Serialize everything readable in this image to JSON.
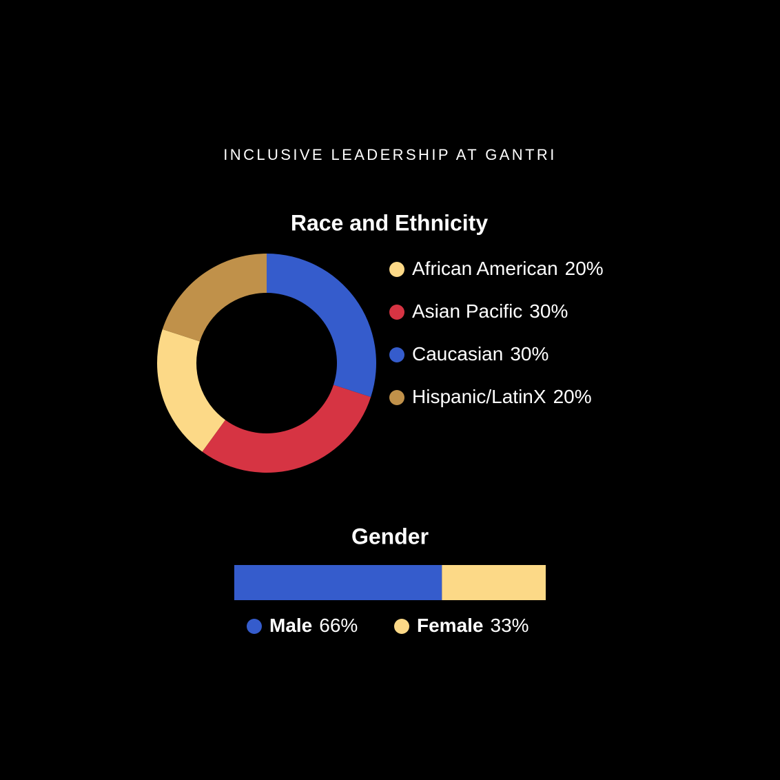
{
  "title": "INCLUSIVE LEADERSHIP AT GANTRI",
  "chart_data": [
    {
      "type": "pie",
      "donut": true,
      "title": "Race and Ethnicity",
      "categories": [
        "African American",
        "Asian Pacific",
        "Caucasian",
        "Hispanic/LatinX"
      ],
      "values": [
        20,
        30,
        30,
        20
      ],
      "value_labels": [
        "20%",
        "30%",
        "30%",
        "20%"
      ],
      "colors": [
        "#fcd987",
        "#d63443",
        "#355ccc",
        "#c0914a"
      ]
    },
    {
      "type": "bar",
      "orientation": "horizontal",
      "stacked": true,
      "title": "Gender",
      "series": [
        {
          "name": "Male",
          "color": "#355ccc",
          "values": [
            66
          ],
          "value_labels": [
            "66%"
          ]
        },
        {
          "name": "Female",
          "color": "#fcd987",
          "values": [
            33
          ],
          "value_labels": [
            "33%"
          ]
        }
      ]
    }
  ]
}
